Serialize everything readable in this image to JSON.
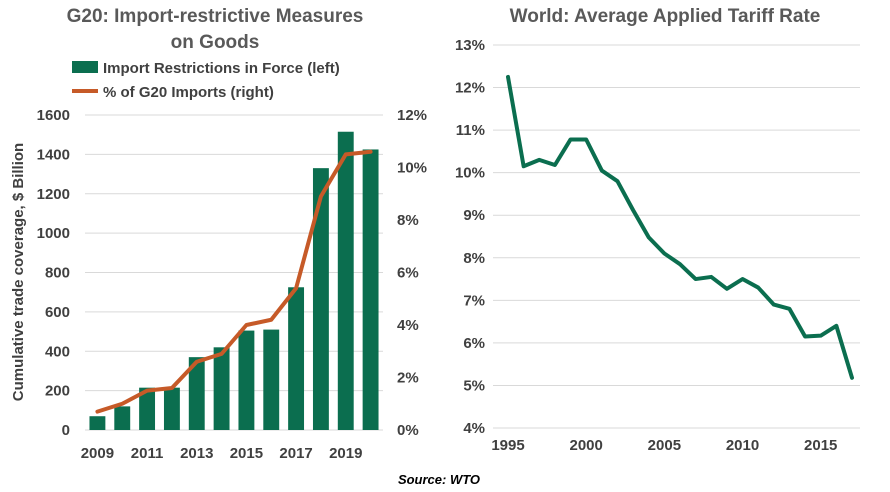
{
  "colors": {
    "bar": "#0b6e4f",
    "pct_line": "#c65a28",
    "tariff_line": "#0b6e4f"
  },
  "source": "Source: WTO",
  "chart_data": [
    {
      "type": "bar",
      "title_line1": "G20: Import-restrictive Measures",
      "title_line2": "on Goods",
      "ylabel": "Cumulative trade coverage, $ Billion",
      "legend_position": "top",
      "legend": [
        "Import Restrictions in Force (left)",
        "% of G20 Imports (right)"
      ],
      "x_tick_labels": [
        "2009",
        "2011",
        "2013",
        "2015",
        "2017",
        "2019"
      ],
      "categories": [
        "2009",
        "2010",
        "2011",
        "2012",
        "2013",
        "2014",
        "2015",
        "2016",
        "2017",
        "2018",
        "2019",
        "2020"
      ],
      "ylim_left": [
        0,
        1600
      ],
      "y_ticks_left": [
        "0",
        "200",
        "400",
        "600",
        "800",
        "1000",
        "1200",
        "1400",
        "1600"
      ],
      "ylim_right": [
        0,
        12
      ],
      "y_ticks_right": [
        "0%",
        "2%",
        "4%",
        "6%",
        "8%",
        "10%",
        "12%"
      ],
      "series": [
        {
          "name": "Import Restrictions in Force (left)",
          "type": "bar",
          "axis": "left",
          "values": [
            70,
            120,
            215,
            215,
            370,
            420,
            505,
            510,
            725,
            1330,
            1515,
            1425
          ]
        },
        {
          "name": "% of G20 Imports (right)",
          "type": "line",
          "axis": "right",
          "values": [
            0.7,
            1.0,
            1.5,
            1.6,
            2.6,
            2.9,
            4.0,
            4.2,
            5.4,
            8.9,
            10.5,
            10.6
          ]
        }
      ]
    },
    {
      "type": "line",
      "title": "World: Average Applied Tariff Rate",
      "x_tick_labels": [
        "1995",
        "2000",
        "2005",
        "2010",
        "2015"
      ],
      "xlim": [
        1995,
        2017
      ],
      "ylim": [
        4,
        13
      ],
      "y_ticks": [
        "4%",
        "5%",
        "6%",
        "7%",
        "8%",
        "9%",
        "10%",
        "11%",
        "12%",
        "13%"
      ],
      "x": [
        1995,
        1996,
        1997,
        1998,
        1999,
        2000,
        2001,
        2002,
        2003,
        2004,
        2005,
        2006,
        2007,
        2008,
        2009,
        2010,
        2011,
        2012,
        2013,
        2014,
        2015,
        2016,
        2017
      ],
      "values": [
        12.25,
        10.15,
        10.3,
        10.18,
        10.78,
        10.78,
        10.05,
        9.8,
        9.12,
        8.48,
        8.1,
        7.85,
        7.5,
        7.55,
        7.27,
        7.5,
        7.3,
        6.9,
        6.8,
        6.15,
        6.17,
        6.4,
        5.18
      ]
    }
  ]
}
